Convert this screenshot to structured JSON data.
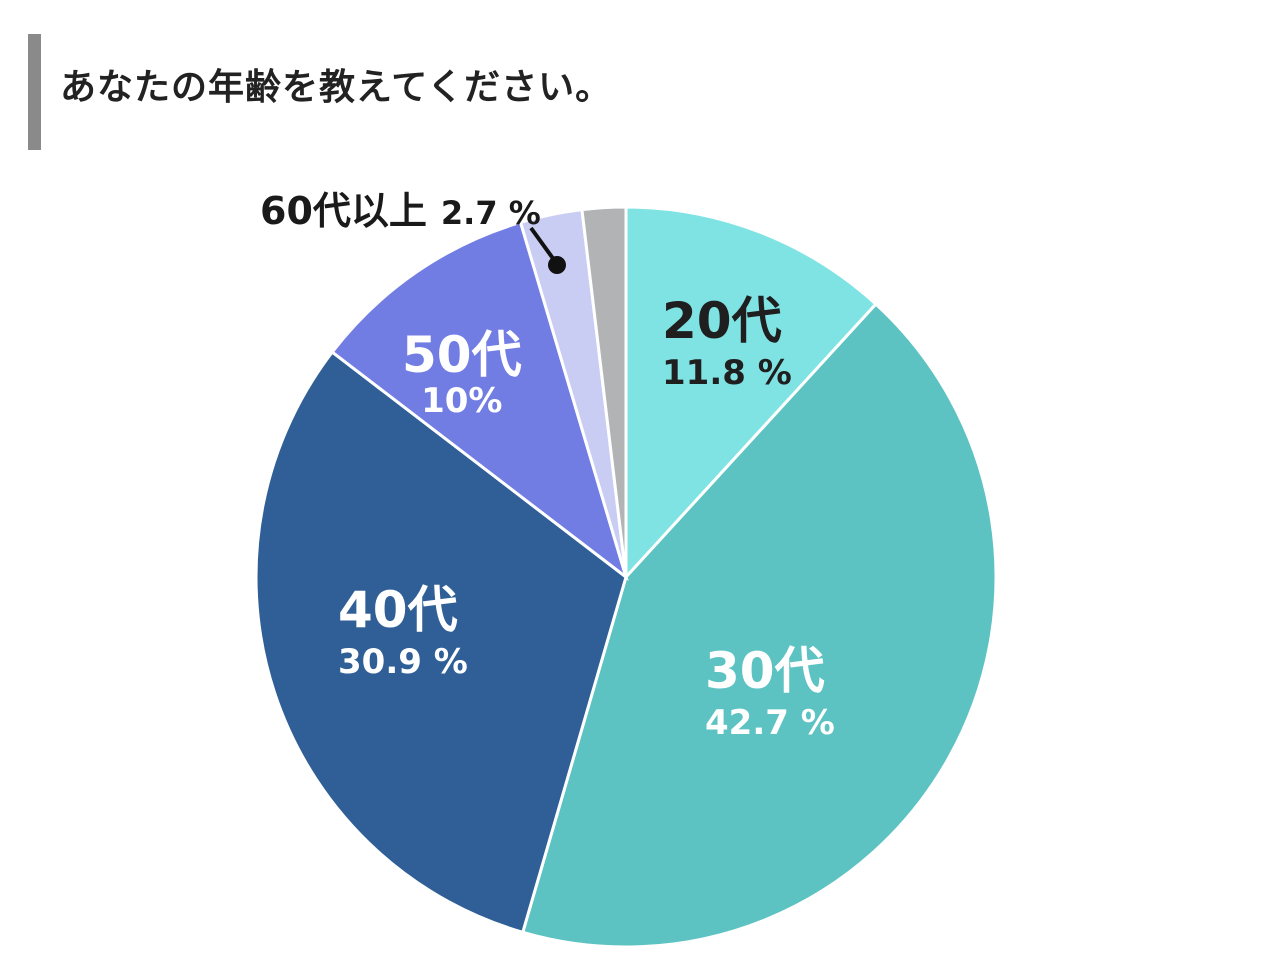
{
  "title": "あなたの年齢を教えてください。",
  "chart_data": {
    "type": "pie",
    "categories": [
      "20代",
      "30代",
      "40代",
      "50代",
      "60代以上",
      ""
    ],
    "values": [
      11.8,
      42.7,
      30.9,
      10,
      2.7,
      1.9
    ],
    "labels": [
      "11.8 %",
      "42.7 %",
      "30.9 %",
      "10%",
      "2.7 %",
      ""
    ],
    "colors": [
      "#80e3e3",
      "#5dc2c2",
      "#2f5f96",
      "#717de3",
      "#c9cdf4",
      "#b1b3b5"
    ],
    "title": "あなたの年齢を教えてください。"
  }
}
